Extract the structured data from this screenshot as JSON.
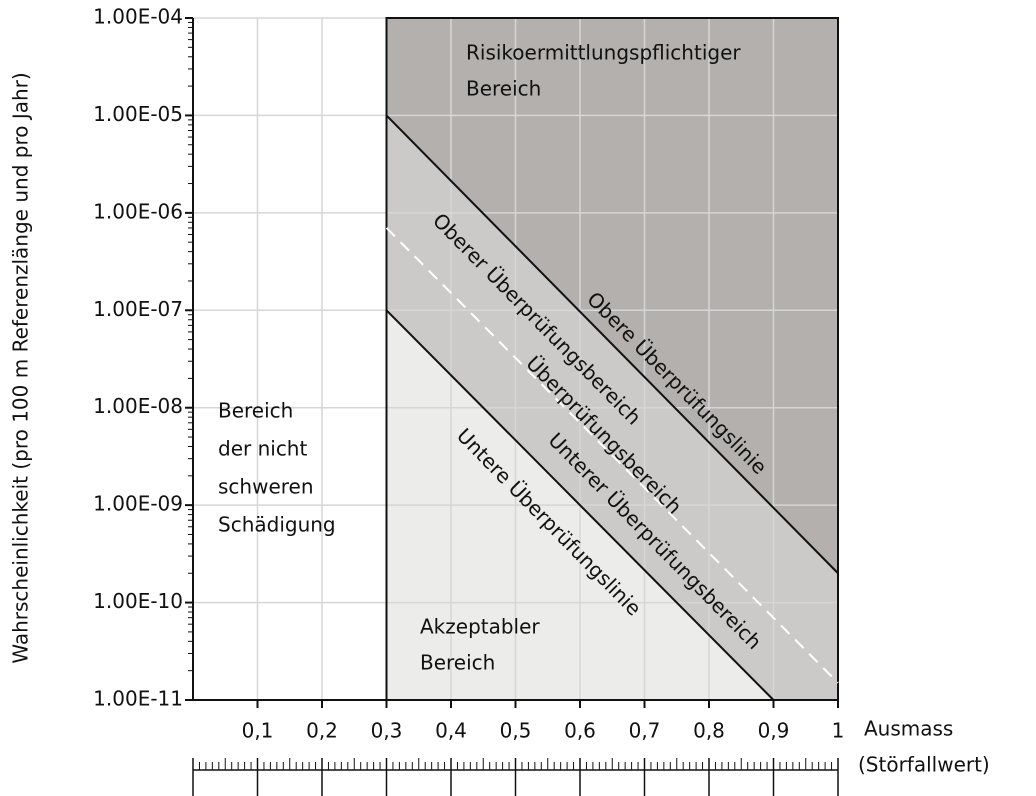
{
  "chart_data": {
    "type": "risk-diagram",
    "xlabel": [
      "Ausmass",
      "(Störfallwert)"
    ],
    "ylabel": "Wahrscheinlichkeit (pro 100 m Referenzlänge und pro Jahr)",
    "xlim": [
      0,
      1
    ],
    "ylim": [
      1e-11,
      0.0001
    ],
    "log_y": true,
    "grid": true,
    "xticks": [
      {
        "value": 0.1,
        "label": "0,1"
      },
      {
        "value": 0.2,
        "label": "0,2"
      },
      {
        "value": 0.3,
        "label": "0,3"
      },
      {
        "value": 0.4,
        "label": "0,4"
      },
      {
        "value": 0.5,
        "label": "0,5"
      },
      {
        "value": 0.6,
        "label": "0,6"
      },
      {
        "value": 0.7,
        "label": "0,7"
      },
      {
        "value": 0.8,
        "label": "0,8"
      },
      {
        "value": 0.9,
        "label": "0,9"
      },
      1
    ],
    "yticks": [
      {
        "value": 1e-11,
        "label": "1.00E-11"
      },
      {
        "value": 1e-10,
        "label": "1.00E-10"
      },
      {
        "value": 1e-09,
        "label": "1.00E-09"
      },
      {
        "value": 1e-08,
        "label": "1.00E-08"
      },
      {
        "value": 1e-07,
        "label": "1.00E-07"
      },
      {
        "value": 1e-06,
        "label": "1.00E-06"
      },
      {
        "value": 1e-05,
        "label": "1.00E-05"
      },
      {
        "value": 0.0001,
        "label": "1.00E-04"
      }
    ],
    "boundary_x": 0.3,
    "series": [
      {
        "name": "Obere Überprüfungslinie",
        "color": "#111111",
        "x": [
          0.3,
          1
        ],
        "values": [
          1e-05,
          2e-10
        ]
      },
      {
        "name": "Untere Überprüfungslinie",
        "color": "#111111",
        "x": [
          0.3,
          0.9
        ],
        "values": [
          1e-07,
          1e-11
        ]
      },
      {
        "color": "#ffffff",
        "dashed": true,
        "x": [
          0.3,
          1
        ],
        "values": [
          7e-07,
          1.5e-11
        ]
      }
    ],
    "region_colors": {
      "upper": "#b4b0ad",
      "middle": "#cbcac8",
      "lower": "#ececeb"
    },
    "annotations": {
      "upper_region": [
        "Risikoermittlungspflichtiger",
        "Bereich"
      ],
      "left_region": [
        "Bereich",
        "der nicht",
        "schweren",
        "Schädigung"
      ],
      "lower_region": [
        "Akzeptabler",
        "Bereich"
      ],
      "middle_region": "Überprüfungsbereich",
      "upper_band": "Oberer Überprüfungsbereich",
      "lower_band": "Unterer Überprüfungsbereich"
    }
  }
}
